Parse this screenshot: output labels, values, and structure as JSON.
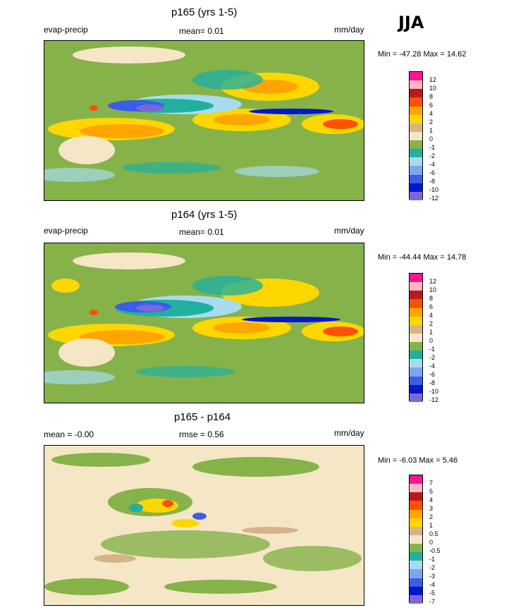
{
  "season": "JJA",
  "palette": [
    "#7b68d8",
    "#0018c8",
    "#3a5ee6",
    "#7ea6ee",
    "#a6dcee",
    "#20b0a0",
    "#86b24a",
    "#f5e6c6",
    "#d6b488",
    "#fed700",
    "#ffa500",
    "#ff5000",
    "#b31c1c",
    "#ffb6c1",
    "#ff1493"
  ],
  "panels": [
    {
      "title": "p165 (yrs 1-5)",
      "left_label": "evap-precip",
      "center_label": "mean=   0.01",
      "right_label": "mm/day",
      "minmax": "Min = -47.28 Max =  14.62",
      "legend_labels": [
        "12",
        "10",
        "8",
        "6",
        "4",
        "2",
        "1",
        "0",
        "-1",
        "-2",
        "-4",
        "-6",
        "-8",
        "-10",
        "-12"
      ]
    },
    {
      "title": "p164 (yrs 1-5)",
      "left_label": "evap-precip",
      "center_label": "mean=   0.01",
      "right_label": "mm/day",
      "minmax": "Min = -44.44 Max =  14.78",
      "legend_labels": [
        "12",
        "10",
        "8",
        "6",
        "4",
        "2",
        "1",
        "0",
        "-1",
        "-2",
        "-4",
        "-6",
        "-8",
        "-10",
        "-12"
      ]
    },
    {
      "title": "p165 - p164",
      "left_label": "mean =  -0.00",
      "center_label": "rmse =   0.56",
      "right_label": "mm/day",
      "minmax": "Min =  -6.03 Max =   5.46",
      "legend_labels": [
        "7",
        "5",
        "4",
        "3",
        "2",
        "1",
        "0.5",
        "0",
        "-0.5",
        "-1",
        "-2",
        "-3",
        "-4",
        "-5",
        "-7"
      ]
    }
  ],
  "chart_data": [
    {
      "type": "heatmap",
      "title": "p165 (yrs 1-5)",
      "variable": "evap-precip",
      "units": "mm/day",
      "mean": 0.01,
      "min": -47.28,
      "max": 14.62,
      "contour_levels": [
        -12,
        -10,
        -8,
        -6,
        -4,
        -2,
        -1,
        0,
        1,
        2,
        4,
        6,
        8,
        10,
        12
      ]
    },
    {
      "type": "heatmap",
      "title": "p164 (yrs 1-5)",
      "variable": "evap-precip",
      "units": "mm/day",
      "mean": 0.01,
      "min": -44.44,
      "max": 14.78,
      "contour_levels": [
        -12,
        -10,
        -8,
        -6,
        -4,
        -2,
        -1,
        0,
        1,
        2,
        4,
        6,
        8,
        10,
        12
      ]
    },
    {
      "type": "heatmap",
      "title": "p165 - p164",
      "units": "mm/day",
      "mean": -0.0,
      "rmse": 0.56,
      "min": -6.03,
      "max": 5.46,
      "contour_levels": [
        -7,
        -5,
        -4,
        -3,
        -2,
        -1,
        -0.5,
        0,
        0.5,
        1,
        2,
        3,
        4,
        5,
        7
      ]
    }
  ]
}
